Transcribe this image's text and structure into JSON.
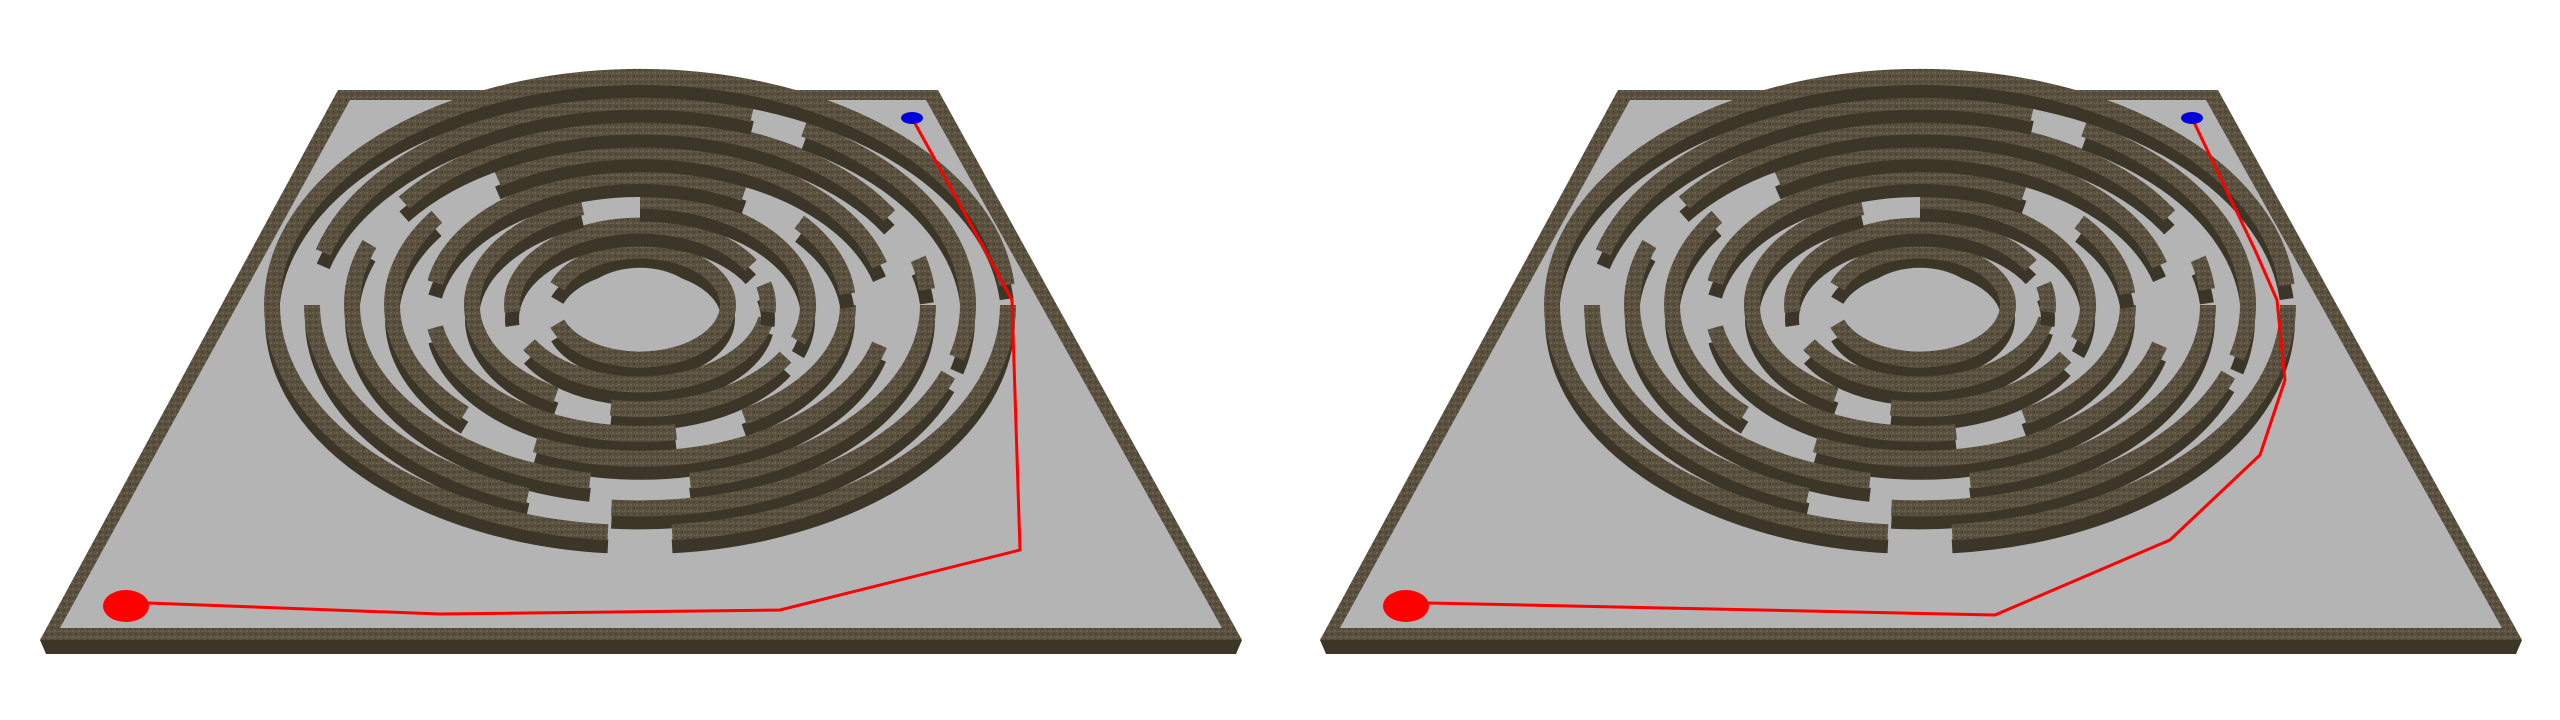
{
  "scene": {
    "background_color": "#ffffff",
    "floor_color": "#b4b4b4",
    "wall_color": "#5a5040",
    "wall_top_color": "#6e6352",
    "wall_inner_color": "#3c3628",
    "path_color": "#ff0000",
    "start_marker": {
      "name": "red-start-marker",
      "color": "#ff0000"
    },
    "goal_marker": {
      "name": "blue-goal-marker",
      "color": "#0000dd"
    }
  },
  "panels": [
    {
      "name": "left",
      "route": "route-a"
    },
    {
      "name": "right",
      "route": "route-b"
    }
  ]
}
